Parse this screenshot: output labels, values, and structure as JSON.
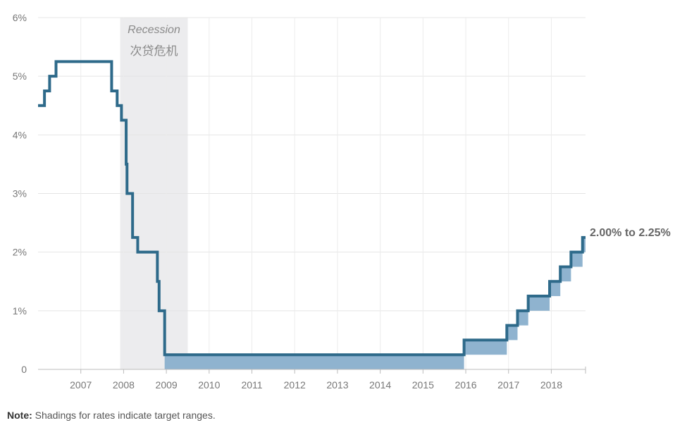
{
  "chart_data": {
    "type": "line",
    "line_style": "step",
    "title": "",
    "xlabel": "",
    "ylabel": "",
    "xlim": [
      2006.0,
      2018.8
    ],
    "ylim": [
      0,
      6
    ],
    "grid": true,
    "x_ticks": [
      "2007",
      "2008",
      "2009",
      "2010",
      "2011",
      "2012",
      "2013",
      "2014",
      "2015",
      "2016",
      "2017",
      "2018"
    ],
    "x_tick_values": [
      2007,
      2008,
      2009,
      2010,
      2011,
      2012,
      2013,
      2014,
      2015,
      2016,
      2017,
      2018
    ],
    "y_ticks": [
      "0",
      "1%",
      "2%",
      "3%",
      "4%",
      "5%",
      "6%"
    ],
    "y_tick_values": [
      0,
      1,
      2,
      3,
      4,
      5,
      6
    ],
    "recession": {
      "start": 2007.92,
      "end": 2009.5,
      "label": "Recession",
      "label_cn": "次贷危机"
    },
    "series": [
      {
        "color": "#2e6a8a",
        "steps": [
          {
            "x": 2006.0,
            "upper": 4.5,
            "lower": 4.5
          },
          {
            "x": 2006.15,
            "upper": 4.75,
            "lower": 4.75
          },
          {
            "x": 2006.27,
            "upper": 5.0,
            "lower": 5.0
          },
          {
            "x": 2006.42,
            "upper": 5.25,
            "lower": 5.25
          },
          {
            "x": 2007.72,
            "upper": 4.75,
            "lower": 4.75
          },
          {
            "x": 2007.85,
            "upper": 4.5,
            "lower": 4.5
          },
          {
            "x": 2007.95,
            "upper": 4.25,
            "lower": 4.25
          },
          {
            "x": 2008.06,
            "upper": 3.5,
            "lower": 3.5
          },
          {
            "x": 2008.08,
            "upper": 3.0,
            "lower": 3.0
          },
          {
            "x": 2008.21,
            "upper": 2.25,
            "lower": 2.25
          },
          {
            "x": 2008.33,
            "upper": 2.0,
            "lower": 2.0
          },
          {
            "x": 2008.79,
            "upper": 1.5,
            "lower": 1.5
          },
          {
            "x": 2008.83,
            "upper": 1.0,
            "lower": 1.0
          },
          {
            "x": 2008.96,
            "upper": 0.25,
            "lower": 0.0
          },
          {
            "x": 2015.96,
            "upper": 0.5,
            "lower": 0.25
          },
          {
            "x": 2016.96,
            "upper": 0.75,
            "lower": 0.5
          },
          {
            "x": 2017.21,
            "upper": 1.0,
            "lower": 0.75
          },
          {
            "x": 2017.46,
            "upper": 1.25,
            "lower": 1.0
          },
          {
            "x": 2017.96,
            "upper": 1.5,
            "lower": 1.25
          },
          {
            "x": 2018.21,
            "upper": 1.75,
            "lower": 1.5
          },
          {
            "x": 2018.46,
            "upper": 2.0,
            "lower": 1.75
          },
          {
            "x": 2018.73,
            "upper": 2.25,
            "lower": 2.0
          }
        ],
        "x_end": 2018.8
      }
    ],
    "shading_color": "#8fb3cf",
    "annotations": [
      {
        "text": "2.00% to 2.25%"
      }
    ]
  },
  "note": {
    "label": "Note:",
    "text": " Shadings for rates indicate target ranges."
  }
}
